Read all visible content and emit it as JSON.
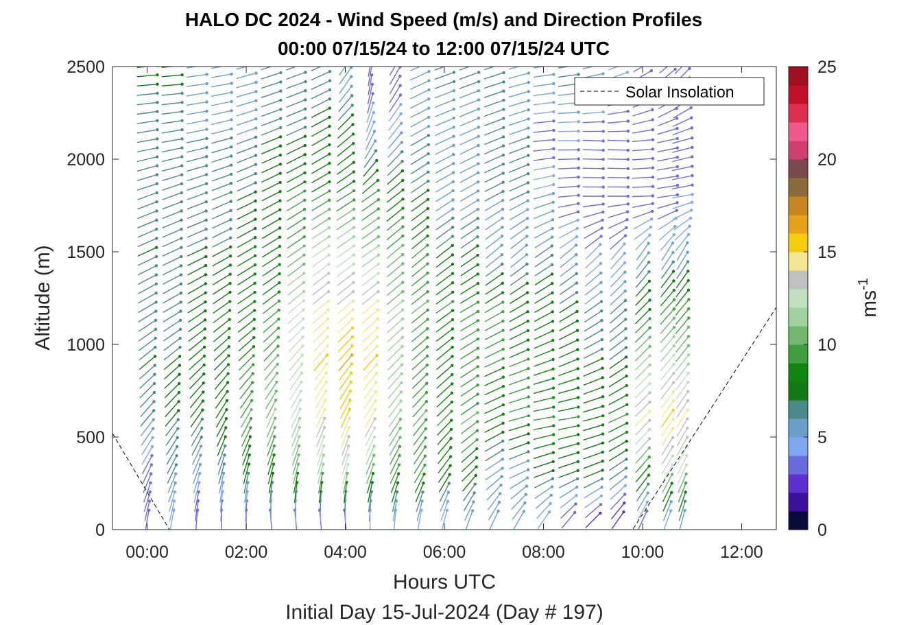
{
  "chart_data": {
    "type": "wind_barb_profile",
    "title_line1": "HALO DC 2024 - Wind Speed (m/s) and Direction Profiles",
    "title_line2": "00:00 07/15/24 to 12:00 07/15/24  UTC",
    "xlabel": "Hours UTC",
    "xlabel2": "Initial Day 15-Jul-2024 (Day # 197)",
    "ylabel": "Altitude (m)",
    "xlim": [
      -0.7,
      12.7
    ],
    "ylim": [
      0,
      2500
    ],
    "x_ticks": [
      0,
      2,
      4,
      6,
      8,
      10,
      12
    ],
    "x_tick_labels": [
      "00:00",
      "02:00",
      "04:00",
      "06:00",
      "08:00",
      "10:00",
      "12:00"
    ],
    "y_ticks": [
      0,
      500,
      1000,
      1500,
      2000,
      2500
    ],
    "y_tick_labels": [
      "0",
      "500",
      "1000",
      "1500",
      "2000",
      "2500"
    ],
    "colorbar": {
      "min": 0,
      "max": 25,
      "ticks": [
        0,
        5,
        10,
        15,
        20,
        25
      ],
      "tick_labels": [
        "0",
        "5",
        "10",
        "15",
        "20",
        "25"
      ],
      "label_base": "ms",
      "label_exp": "-1",
      "colors": [
        "#0b0b3b",
        "#3a0f9a",
        "#5b2fd0",
        "#6b6be0",
        "#7fa8f0",
        "#6aa0c8",
        "#4a8a8a",
        "#137a13",
        "#0f870f",
        "#3f9f3f",
        "#6fb86f",
        "#9fd29f",
        "#bfdfbf",
        "#c0c0c0",
        "#f4e690",
        "#f5cc10",
        "#e6a21a",
        "#c8841e",
        "#8b6a3c",
        "#7a4a4a",
        "#d04070",
        "#f05a8a",
        "#e03050",
        "#c0102a",
        "#a00f20"
      ]
    },
    "legend": {
      "entry": "Solar Insolation",
      "position": "top-right",
      "style": "dashed-black"
    },
    "profile_times": [
      0.0,
      0.5,
      1.0,
      1.5,
      2.0,
      2.5,
      3.0,
      3.5,
      4.0,
      4.5,
      5.0,
      5.5,
      6.0,
      6.5,
      7.0,
      7.5,
      8.0,
      8.5,
      9.0,
      9.5,
      10.0,
      10.5,
      10.8
    ],
    "altitudes": [
      50,
      300,
      600,
      900,
      1200,
      1500,
      1800,
      2100,
      2400
    ],
    "wind_speed": [
      [
        3,
        3,
        6,
        7,
        6,
        7,
        6,
        6,
        7
      ],
      [
        4,
        6,
        7,
        7,
        6,
        6,
        6,
        6,
        7
      ],
      [
        3,
        5,
        7,
        8,
        7,
        7,
        6,
        6,
        5
      ],
      [
        3,
        6,
        8,
        8,
        8,
        7,
        6,
        6,
        5
      ],
      [
        3,
        7,
        10,
        9,
        8,
        8,
        7,
        6,
        5
      ],
      [
        3,
        8,
        11,
        10,
        9,
        8,
        7,
        7,
        6
      ],
      [
        3,
        10,
        12,
        12,
        12,
        10,
        9,
        7,
        6
      ],
      [
        3,
        11,
        14,
        15,
        14,
        12,
        9,
        8,
        6
      ],
      [
        3,
        12,
        15,
        16,
        14,
        12,
        9,
        8,
        5
      ],
      [
        4,
        10,
        14,
        15,
        14,
        11,
        9,
        5,
        3
      ],
      [
        4,
        9,
        11,
        11,
        11,
        10,
        8,
        5,
        3
      ],
      [
        4,
        9,
        10,
        9,
        10,
        9,
        7,
        6,
        5
      ],
      [
        4,
        8,
        9,
        8,
        9,
        7,
        5,
        5,
        6
      ],
      [
        5,
        8,
        10,
        9,
        9,
        7,
        5,
        5,
        6
      ],
      [
        5,
        5,
        8,
        9,
        9,
        5,
        6,
        6,
        6
      ],
      [
        5,
        5,
        9,
        9,
        8,
        5,
        6,
        6,
        5
      ],
      [
        4,
        7,
        9,
        8,
        8,
        6,
        5,
        3,
        5
      ],
      [
        3,
        7,
        9,
        8,
        7,
        5,
        3,
        4,
        6
      ],
      [
        2,
        7,
        8,
        7,
        6,
        4,
        3,
        3,
        5
      ],
      [
        2,
        6,
        9,
        7,
        6,
        4,
        3,
        3,
        4
      ],
      [
        3,
        8,
        14,
        11,
        8,
        5,
        3,
        3,
        3
      ],
      [
        4,
        12,
        15,
        12,
        9,
        5,
        3,
        3,
        3
      ],
      [
        5,
        12,
        14,
        11,
        9,
        5,
        4,
        3,
        3
      ]
    ],
    "wind_direction_deg": [
      [
        190,
        205,
        220,
        230,
        240,
        245,
        250,
        260,
        265
      ],
      [
        190,
        205,
        220,
        230,
        240,
        245,
        250,
        260,
        265
      ],
      [
        185,
        200,
        215,
        228,
        238,
        245,
        250,
        258,
        262
      ],
      [
        180,
        195,
        210,
        225,
        235,
        242,
        248,
        255,
        260
      ],
      [
        180,
        195,
        210,
        225,
        235,
        240,
        245,
        250,
        255
      ],
      [
        175,
        195,
        205,
        222,
        232,
        238,
        243,
        248,
        252
      ],
      [
        175,
        195,
        205,
        220,
        230,
        235,
        240,
        245,
        250
      ],
      [
        175,
        195,
        205,
        220,
        230,
        235,
        240,
        240,
        245
      ],
      [
        175,
        195,
        205,
        220,
        230,
        235,
        238,
        230,
        215
      ],
      [
        180,
        200,
        210,
        222,
        230,
        235,
        235,
        205,
        190
      ],
      [
        185,
        205,
        215,
        225,
        230,
        230,
        232,
        220,
        210
      ],
      [
        190,
        210,
        220,
        228,
        232,
        230,
        235,
        240,
        245
      ],
      [
        195,
        215,
        225,
        230,
        235,
        232,
        238,
        245,
        250
      ],
      [
        200,
        225,
        235,
        238,
        240,
        235,
        240,
        245,
        250
      ],
      [
        205,
        235,
        245,
        245,
        240,
        230,
        242,
        248,
        252
      ],
      [
        210,
        245,
        255,
        248,
        240,
        230,
        245,
        250,
        255
      ],
      [
        215,
        250,
        260,
        250,
        240,
        235,
        255,
        265,
        262
      ],
      [
        220,
        250,
        260,
        248,
        238,
        230,
        265,
        270,
        262
      ],
      [
        225,
        248,
        255,
        245,
        235,
        225,
        270,
        272,
        258
      ],
      [
        215,
        235,
        245,
        235,
        228,
        220,
        270,
        272,
        250
      ],
      [
        205,
        220,
        225,
        225,
        225,
        215,
        268,
        265,
        240
      ],
      [
        200,
        210,
        215,
        220,
        222,
        212,
        262,
        258,
        230
      ],
      [
        195,
        205,
        212,
        218,
        220,
        210,
        260,
        255,
        225
      ]
    ],
    "solar_insolation": {
      "x": [
        -0.7,
        0.45,
        0.8,
        9.8,
        12.7
      ],
      "y": [
        520,
        0,
        0,
        0,
        1200
      ]
    }
  }
}
